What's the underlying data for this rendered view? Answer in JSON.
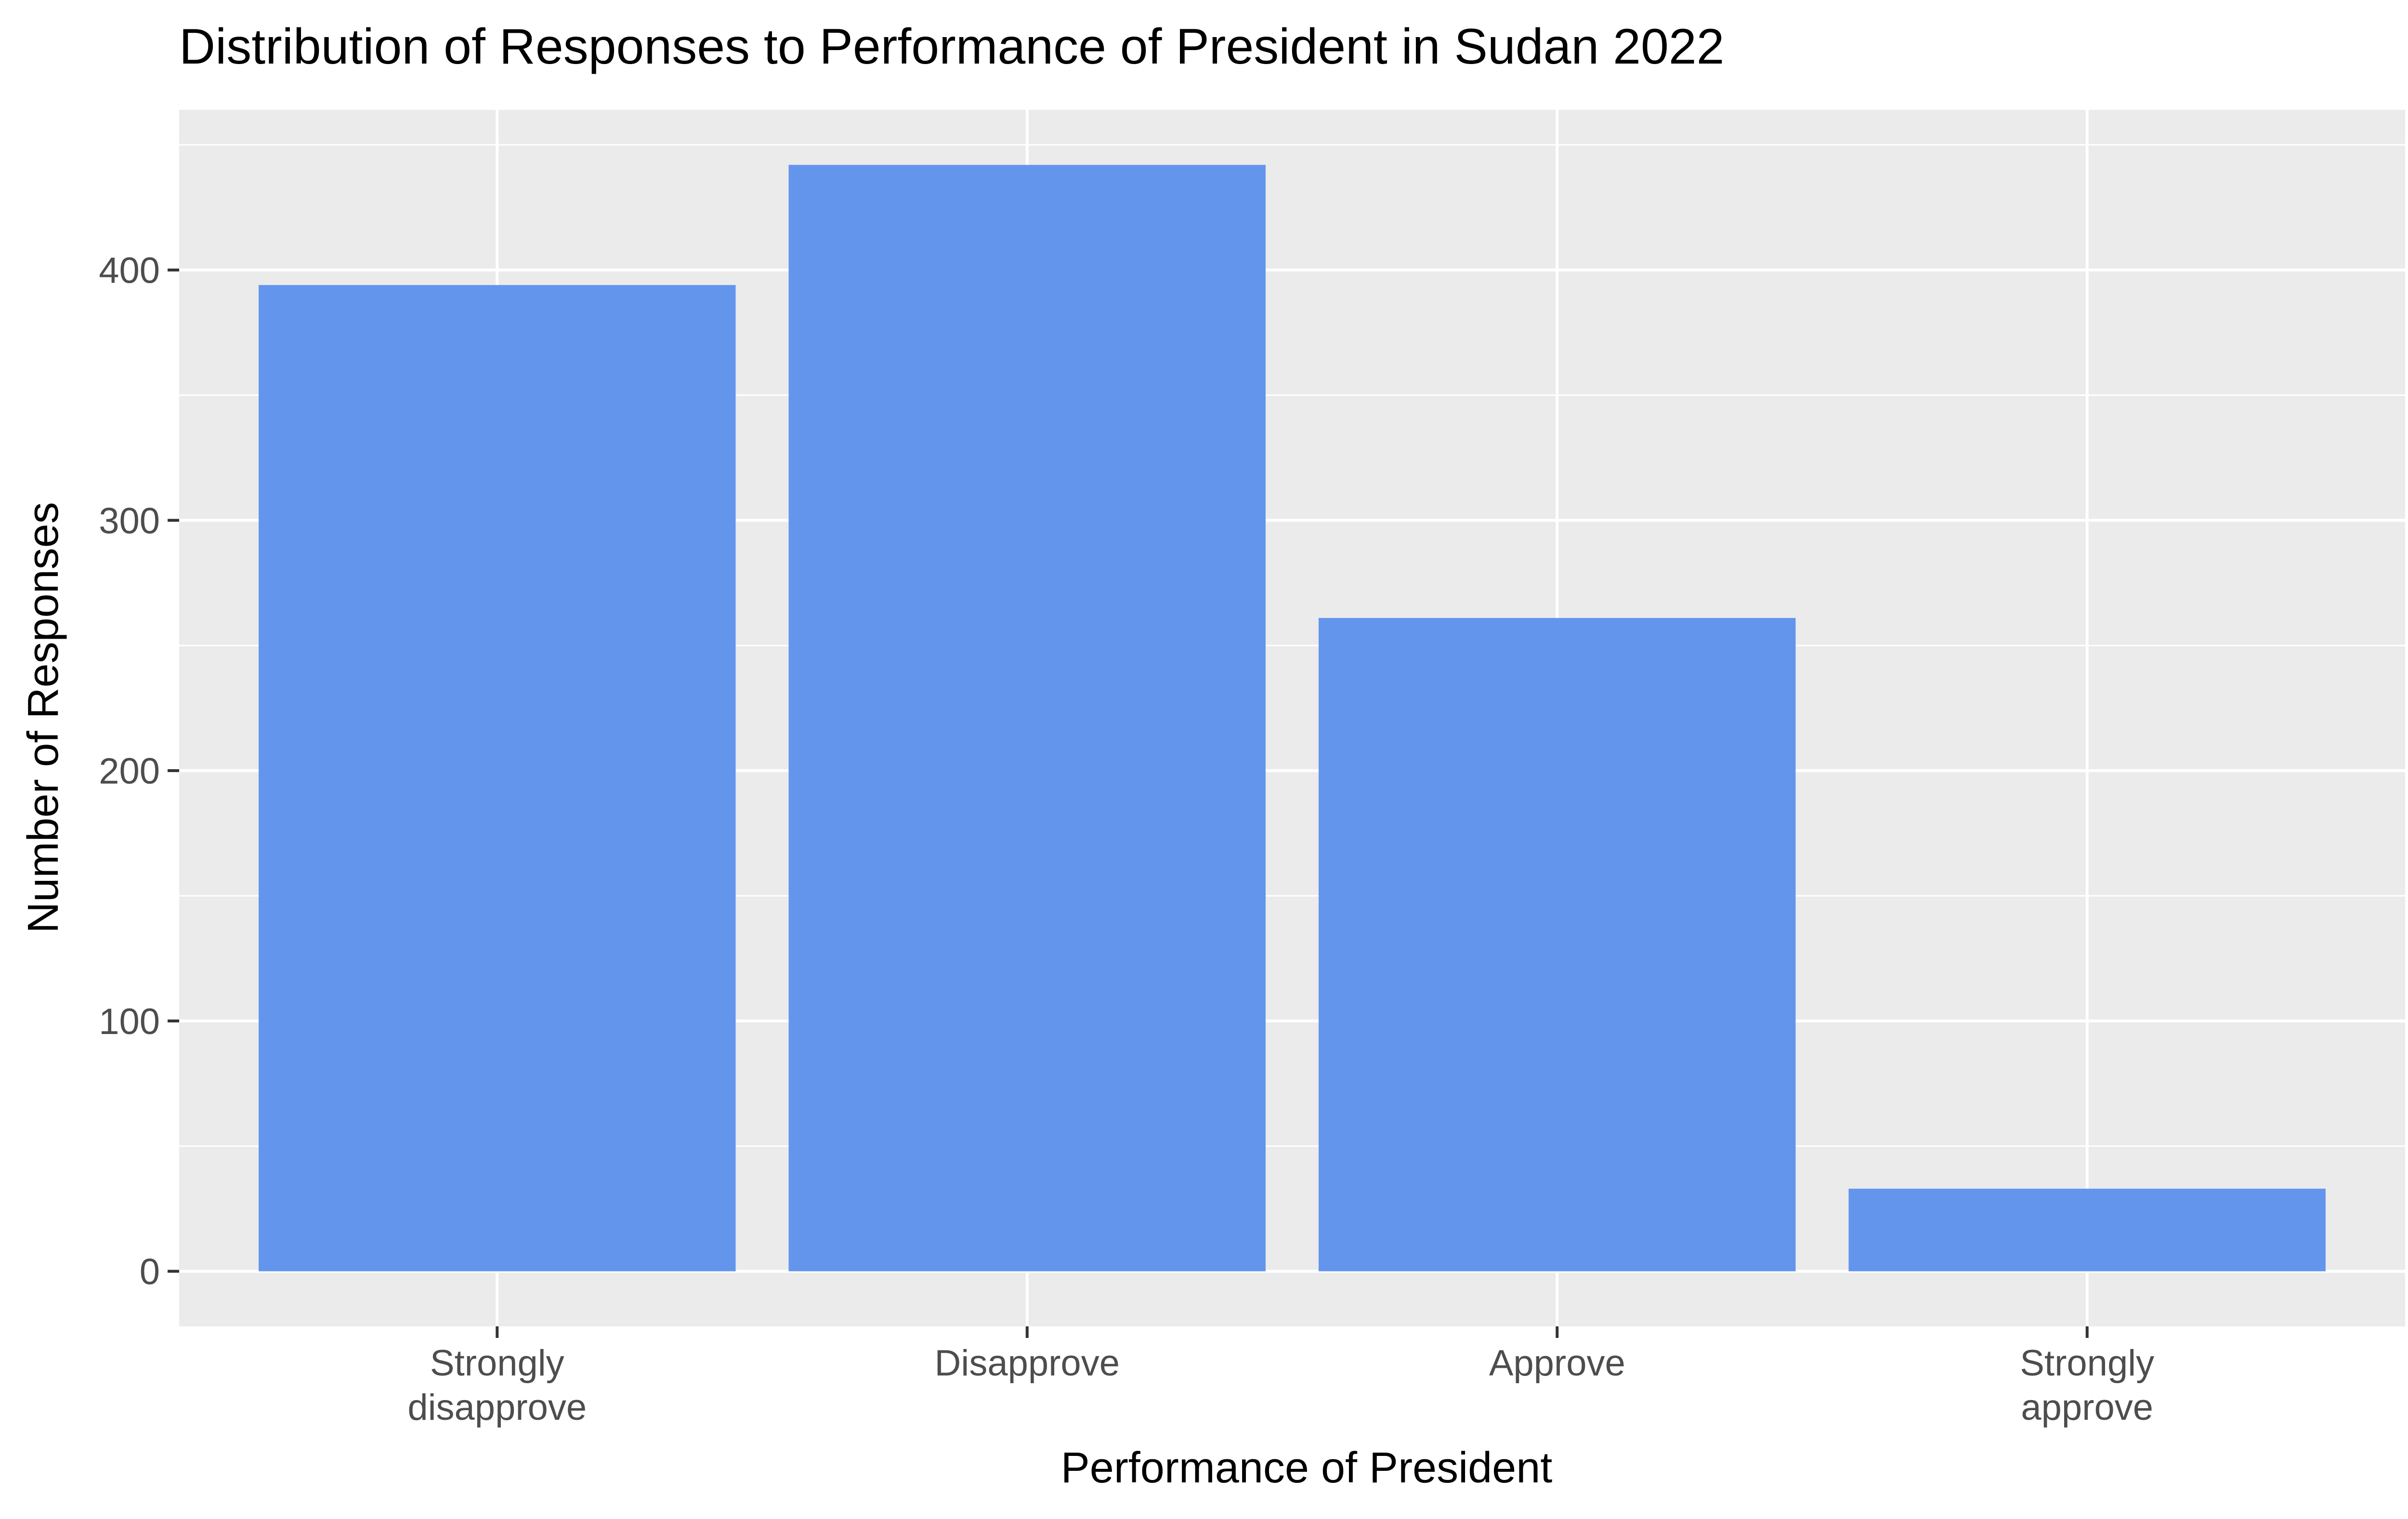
{
  "chart_data": {
    "type": "bar",
    "title": "Distribution of Responses to Performance of President in Sudan 2022",
    "xlabel": "Performance of President",
    "ylabel": "Number of Responses",
    "categories": [
      "Strongly disapprove",
      "Disapprove",
      "Approve",
      "Strongly approve"
    ],
    "category_labels": [
      [
        "Strongly",
        "disapprove"
      ],
      [
        "Disapprove"
      ],
      [
        "Approve"
      ],
      [
        "Strongly",
        "approve"
      ]
    ],
    "values": [
      394,
      442,
      261,
      33
    ],
    "ylim": [
      -22,
      464
    ],
    "yticks": [
      0,
      100,
      200,
      300,
      400
    ],
    "ytick_labels": [
      "0",
      "100",
      "200",
      "300",
      "400"
    ],
    "grid": true,
    "legend": "none",
    "colors": {
      "bar": "#6495ED",
      "panel": "#EBEBEB",
      "grid": "#FFFFFF",
      "tick_text": "#4D4D4D",
      "axis_text": "#000000"
    }
  }
}
